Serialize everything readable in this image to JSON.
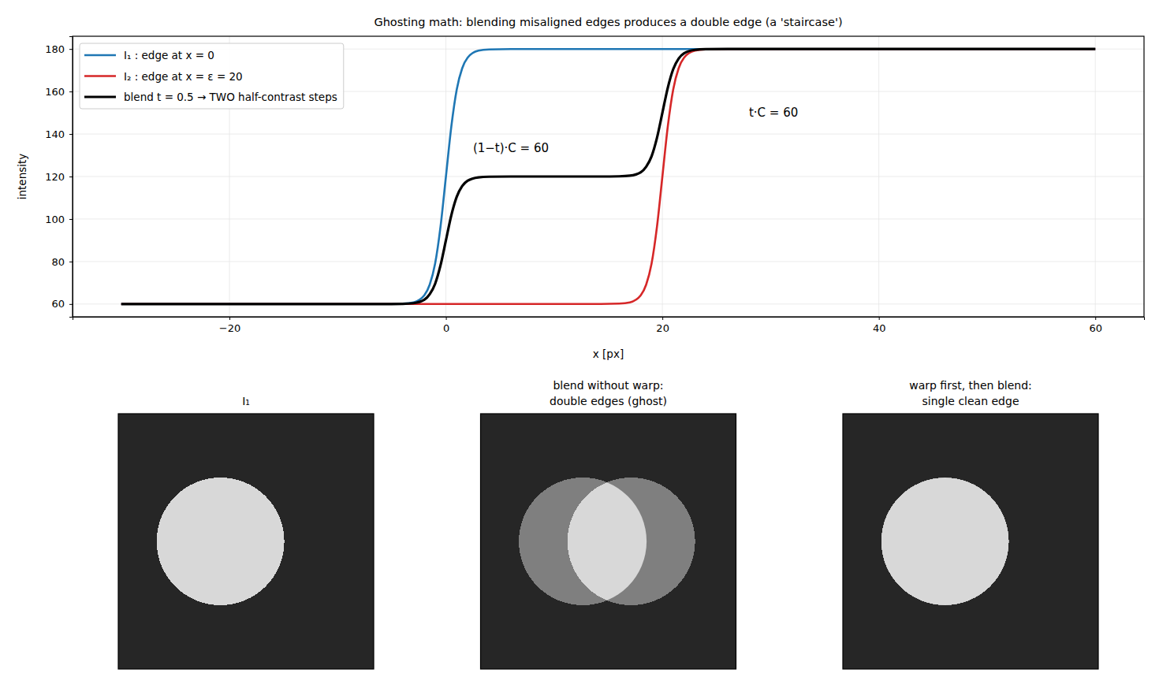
{
  "chart_data": [
    {
      "type": "line",
      "title": "Ghosting math: blending misaligned edges produces a double edge (a 'staircase')",
      "x_label": "x [px]",
      "y_label": "intensity",
      "x": [
        -30,
        -6,
        -4,
        -3,
        -2,
        -1.5,
        -1,
        -0.5,
        0,
        0.5,
        1,
        1.5,
        2,
        3,
        4,
        6,
        14,
        16,
        17,
        18,
        18.5,
        19,
        19.5,
        20,
        20.5,
        21,
        21.5,
        22,
        23,
        24,
        26,
        60
      ],
      "xlim": [
        -34.5,
        64.5
      ],
      "xticks": [
        {
          "value": -20,
          "label": "−20"
        },
        0,
        20,
        40,
        60
      ],
      "ylim": [
        54,
        186
      ],
      "yticks": [
        60,
        80,
        100,
        120,
        140,
        160,
        180
      ],
      "grid": true,
      "legend": "upper left",
      "series": [
        {
          "name": "I₁ : edge at x = 0",
          "color": "#1f77b4",
          "values": [
            60,
            60,
            60.2,
            60.8,
            64.1,
            69.1,
            79,
            96.4,
            120,
            143.6,
            161,
            170.9,
            175.9,
            179.2,
            179.8,
            180,
            180,
            180,
            180,
            180,
            180,
            180,
            180,
            180,
            180,
            180,
            180,
            180,
            180,
            180,
            180,
            180
          ]
        },
        {
          "name": "I₂ : edge at x = ε = 20",
          "color": "#d62728",
          "values": [
            60,
            60,
            60,
            60,
            60,
            60,
            60,
            60,
            60,
            60,
            60,
            60,
            60,
            60,
            60,
            60,
            60,
            60.2,
            60.8,
            64.1,
            69.1,
            79,
            96.4,
            120,
            143.6,
            161,
            170.9,
            175.9,
            179.2,
            179.8,
            180,
            180
          ]
        },
        {
          "name": "blend t = 0.5 → TWO half-contrast steps",
          "color": "#000000",
          "values": [
            60,
            60,
            60.1,
            60.4,
            62,
            64.6,
            69.5,
            78.2,
            90,
            101.8,
            110.5,
            115.5,
            118,
            119.6,
            119.9,
            120,
            120,
            120.1,
            120.4,
            122,
            124.6,
            129.5,
            138.2,
            150,
            161.8,
            170.5,
            175.5,
            178,
            179.6,
            179.9,
            180,
            180
          ]
        }
      ],
      "annotations": [
        {
          "text": "(1−t)·C = 60",
          "x": 2.5,
          "y": 131.5
        },
        {
          "text": "t·C = 60",
          "x": 28,
          "y": 148
        }
      ]
    },
    {
      "type": "image",
      "title": "I₁",
      "xlim": [
        0,
        100
      ],
      "ylim": [
        0,
        100
      ],
      "tick_labels": false,
      "background": 38,
      "foreground": 216,
      "circles": [
        {
          "cx": 40,
          "cy": 50,
          "r": 25,
          "weight": 1
        }
      ]
    },
    {
      "type": "image",
      "title": "blend without warp:\ndouble edges (ghost)",
      "xlim": [
        0,
        100
      ],
      "ylim": [
        0,
        100
      ],
      "tick_labels": false,
      "background": 38,
      "foreground": 216,
      "circles": [
        {
          "cx": 40,
          "cy": 50,
          "r": 25,
          "weight": 0.5
        },
        {
          "cx": 59,
          "cy": 50,
          "r": 25,
          "weight": 0.5
        }
      ]
    },
    {
      "type": "image",
      "title": "warp first, then blend:\nsingle clean edge",
      "xlim": [
        0,
        100
      ],
      "ylim": [
        0,
        100
      ],
      "tick_labels": false,
      "background": 38,
      "foreground": 216,
      "circles": [
        {
          "cx": 40,
          "cy": 50,
          "r": 25,
          "weight": 0.5
        },
        {
          "cx": 40,
          "cy": 50,
          "r": 25,
          "weight": 0.5
        }
      ]
    }
  ]
}
